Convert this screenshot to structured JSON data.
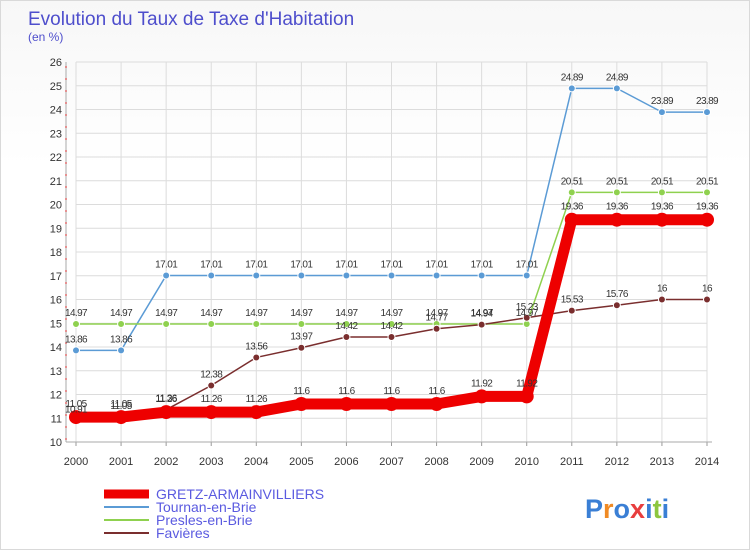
{
  "chart_data": {
    "type": "line",
    "title": "Evolution du Taux de Taxe d'Habitation",
    "subtitle": "(en %)",
    "x": [
      2000,
      2001,
      2002,
      2003,
      2004,
      2005,
      2006,
      2007,
      2008,
      2009,
      2010,
      2011,
      2012,
      2013,
      2014
    ],
    "ylim": [
      10,
      26
    ],
    "yticks": [
      10,
      11,
      12,
      13,
      14,
      15,
      16,
      17,
      18,
      19,
      20,
      21,
      22,
      23,
      24,
      25,
      26
    ],
    "grid": true,
    "legend_position": "bottom-left",
    "series": [
      {
        "name": "GRETZ-ARMAINVILLIERS",
        "color": "#ee0000",
        "values": [
          11.05,
          11.05,
          11.26,
          11.26,
          11.26,
          11.6,
          11.6,
          11.6,
          11.6,
          11.92,
          11.92,
          19.36,
          19.36,
          19.36,
          19.36
        ]
      },
      {
        "name": "Tournan-en-Brie",
        "color": "#5b9bd5",
        "values": [
          13.86,
          13.86,
          17.01,
          17.01,
          17.01,
          17.01,
          17.01,
          17.01,
          17.01,
          17.01,
          17.01,
          24.89,
          24.89,
          23.89,
          23.89
        ]
      },
      {
        "name": "Presles-en-Brie",
        "color": "#8fd14f",
        "values": [
          14.97,
          14.97,
          14.97,
          14.97,
          14.97,
          14.97,
          14.97,
          14.97,
          14.97,
          14.97,
          14.97,
          20.51,
          20.51,
          20.51,
          20.51
        ]
      },
      {
        "name": "Favières",
        "color": "#7a2e2e",
        "values": [
          10.91,
          11.05,
          11.36,
          12.38,
          13.56,
          13.97,
          14.42,
          14.42,
          14.77,
          14.94,
          15.23,
          15.53,
          15.76,
          16,
          16
        ]
      }
    ]
  },
  "brand": {
    "letters": [
      "P",
      "r",
      "o",
      "x",
      "i",
      "t",
      "i"
    ],
    "colors": [
      "#3a7fd5",
      "#f08a24",
      "#3a7fd5",
      "#e83e3e",
      "#3a7fd5",
      "#8cc63f",
      "#3a7fd5"
    ]
  }
}
